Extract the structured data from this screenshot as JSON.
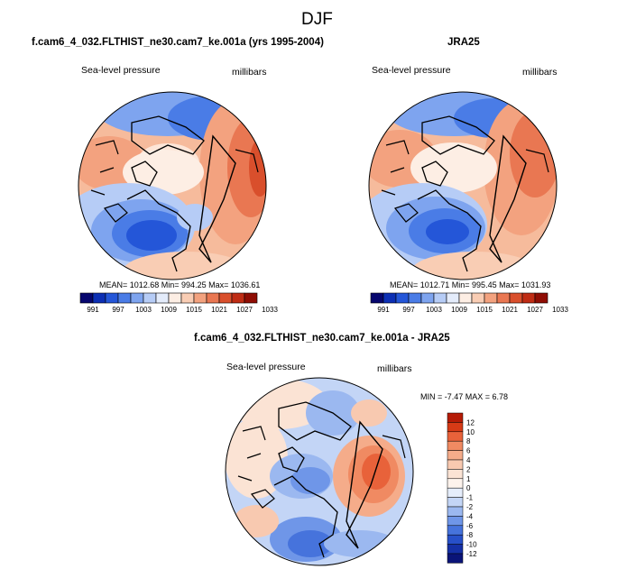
{
  "page_title": "DJF",
  "panel_left": {
    "title": "f.cam6_4_032.FLTHIST_ne30.cam7_ke.001a (yrs 1995-2004)",
    "variable": "Sea-level pressure",
    "units": "millibars",
    "stats": "MEAN= 1012.68  Min= 994.25  Max= 1036.61"
  },
  "panel_right": {
    "title": "JRA25",
    "variable": "Sea-level pressure",
    "units": "millibars",
    "stats": "MEAN= 1012.71  Min= 995.45  Max= 1031.93"
  },
  "panel_diff": {
    "title": "f.cam6_4_032.FLTHIST_ne30.cam7_ke.001a - JRA25",
    "variable": "Sea-level pressure",
    "units": "millibars",
    "stats": "MIN =  -7.47 MAX =   6.78"
  },
  "abs_colorbar": {
    "labels": [
      "991",
      "997",
      "1003",
      "1009",
      "1015",
      "1021",
      "1027",
      "1033"
    ],
    "colors": [
      "#06066e",
      "#0c2fb4",
      "#2456d8",
      "#4a7ce6",
      "#7ea4ef",
      "#b6ccf6",
      "#e4ecfb",
      "#fdeee4",
      "#f9cdb4",
      "#f3a27f",
      "#e97752",
      "#d94f2c",
      "#bf2c14",
      "#8f0d04"
    ]
  },
  "diff_colorbar": {
    "labels": [
      "12",
      "10",
      "8",
      "6",
      "4",
      "2",
      "1",
      "0",
      "-1",
      "-2",
      "-4",
      "-6",
      "-8",
      "-10",
      "-12"
    ],
    "colors": [
      "#b51b06",
      "#d63a16",
      "#e8623a",
      "#f08a62",
      "#f5ac8a",
      "#f8c9b0",
      "#fbe3d4",
      "#fdf3ec",
      "#e5edfb",
      "#c3d5f6",
      "#9bb8f0",
      "#6f96e8",
      "#4673dc",
      "#2750c9",
      "#1530a6",
      "#0a1478"
    ]
  },
  "colors": {
    "background": "#ffffff",
    "coast": "#000000"
  }
}
